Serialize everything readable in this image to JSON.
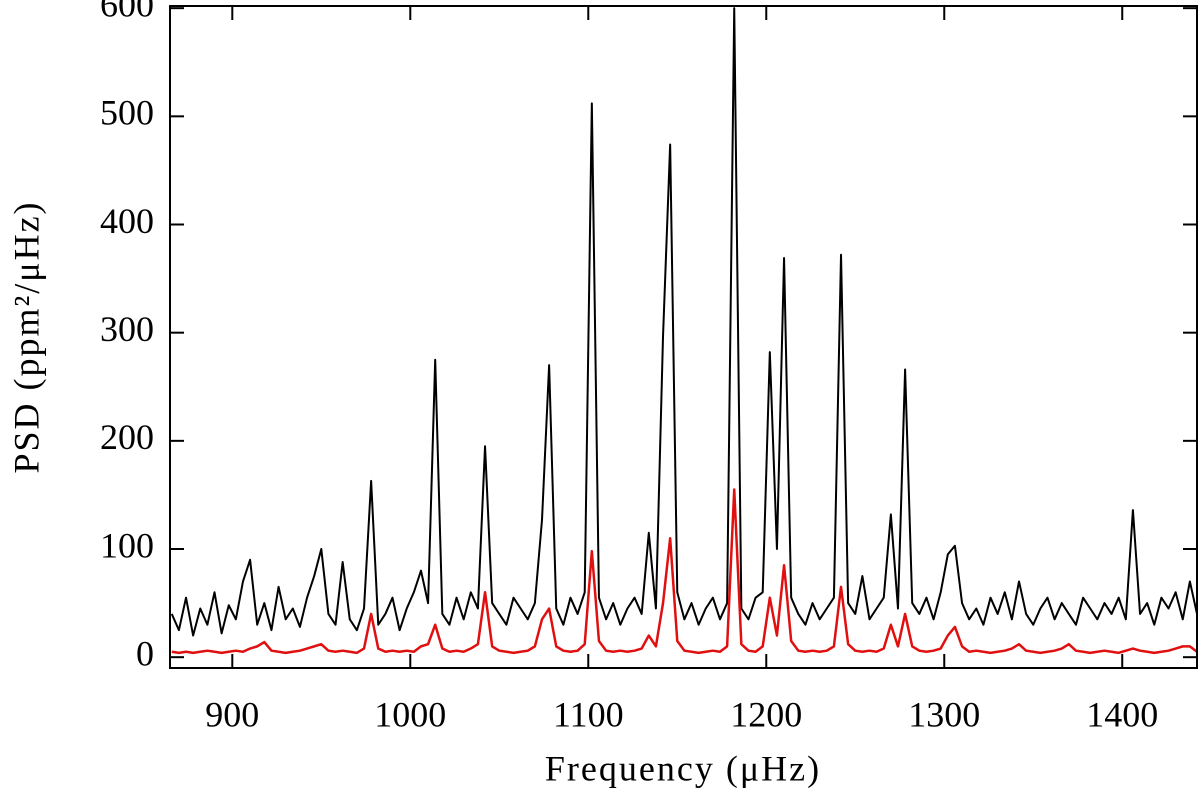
{
  "chart_data": {
    "type": "line",
    "x_label": "Frequency (μHz)",
    "y_label": "PSD (ppm²/μHz)",
    "xlim": [
      865,
      1442
    ],
    "ylim": [
      -10,
      602
    ],
    "xticks": [
      900,
      1000,
      1100,
      1200,
      1300,
      1400
    ],
    "yticks": [
      0,
      100,
      200,
      300,
      400,
      500,
      600
    ],
    "x": [
      866,
      870,
      874,
      878,
      882,
      886,
      890,
      894,
      898,
      902,
      906,
      910,
      914,
      918,
      922,
      926,
      930,
      934,
      938,
      942,
      946,
      950,
      954,
      958,
      962,
      966,
      970,
      974,
      978,
      982,
      986,
      990,
      994,
      998,
      1002,
      1006,
      1010,
      1014,
      1018,
      1022,
      1026,
      1030,
      1034,
      1038,
      1042,
      1046,
      1050,
      1054,
      1058,
      1062,
      1066,
      1070,
      1074,
      1078,
      1082,
      1086,
      1090,
      1094,
      1098,
      1102,
      1106,
      1110,
      1114,
      1118,
      1122,
      1126,
      1130,
      1134,
      1138,
      1142,
      1146,
      1150,
      1154,
      1158,
      1162,
      1166,
      1170,
      1174,
      1178,
      1182,
      1186,
      1190,
      1194,
      1198,
      1202,
      1206,
      1210,
      1214,
      1218,
      1222,
      1226,
      1230,
      1234,
      1238,
      1242,
      1246,
      1250,
      1254,
      1258,
      1262,
      1266,
      1270,
      1274,
      1278,
      1282,
      1286,
      1290,
      1294,
      1298,
      1302,
      1306,
      1310,
      1314,
      1318,
      1322,
      1326,
      1330,
      1334,
      1338,
      1342,
      1346,
      1350,
      1354,
      1358,
      1362,
      1366,
      1370,
      1374,
      1378,
      1382,
      1386,
      1390,
      1394,
      1398,
      1402,
      1406,
      1410,
      1414,
      1418,
      1422,
      1426,
      1430,
      1434,
      1438,
      1442
    ],
    "series": [
      {
        "color": "#000000",
        "values": [
          40,
          25,
          55,
          20,
          45,
          30,
          60,
          22,
          48,
          35,
          70,
          90,
          30,
          50,
          25,
          65,
          35,
          45,
          28,
          55,
          75,
          100,
          40,
          30,
          88,
          35,
          25,
          45,
          163,
          30,
          40,
          55,
          25,
          45,
          60,
          80,
          50,
          275,
          40,
          30,
          55,
          35,
          60,
          45,
          195,
          50,
          40,
          30,
          55,
          45,
          35,
          50,
          127,
          270,
          45,
          30,
          55,
          40,
          60,
          512,
          55,
          35,
          50,
          30,
          45,
          55,
          40,
          115,
          45,
          297,
          474,
          60,
          35,
          50,
          30,
          45,
          55,
          35,
          50,
          600,
          45,
          35,
          55,
          60,
          282,
          100,
          369,
          55,
          40,
          30,
          50,
          35,
          45,
          55,
          372,
          50,
          40,
          75,
          35,
          45,
          55,
          132,
          45,
          266,
          50,
          40,
          55,
          35,
          60,
          95,
          103,
          50,
          35,
          45,
          30,
          55,
          40,
          60,
          35,
          70,
          40,
          30,
          45,
          55,
          35,
          50,
          40,
          30,
          55,
          45,
          35,
          50,
          40,
          55,
          35,
          136,
          40,
          50,
          30,
          55,
          45,
          60,
          35,
          70,
          40
        ]
      },
      {
        "color": "#e01010",
        "values": [
          5,
          4,
          5,
          4,
          5,
          6,
          5,
          4,
          5,
          6,
          5,
          8,
          10,
          14,
          6,
          5,
          4,
          5,
          6,
          8,
          10,
          12,
          6,
          5,
          6,
          5,
          4,
          8,
          40,
          8,
          5,
          6,
          5,
          6,
          5,
          10,
          12,
          30,
          8,
          5,
          6,
          5,
          8,
          12,
          60,
          10,
          6,
          5,
          4,
          5,
          6,
          10,
          35,
          45,
          10,
          6,
          5,
          6,
          12,
          98,
          15,
          6,
          5,
          6,
          5,
          6,
          8,
          20,
          10,
          50,
          110,
          15,
          6,
          5,
          4,
          5,
          6,
          5,
          10,
          155,
          12,
          6,
          5,
          10,
          55,
          20,
          85,
          15,
          6,
          5,
          6,
          5,
          6,
          10,
          65,
          12,
          6,
          5,
          6,
          5,
          8,
          30,
          10,
          40,
          10,
          6,
          5,
          6,
          8,
          20,
          28,
          10,
          5,
          6,
          5,
          4,
          5,
          6,
          8,
          12,
          6,
          5,
          4,
          5,
          6,
          8,
          12,
          6,
          5,
          4,
          5,
          6,
          5,
          4,
          6,
          8,
          6,
          5,
          4,
          5,
          6,
          8,
          10,
          10,
          5
        ]
      }
    ]
  }
}
